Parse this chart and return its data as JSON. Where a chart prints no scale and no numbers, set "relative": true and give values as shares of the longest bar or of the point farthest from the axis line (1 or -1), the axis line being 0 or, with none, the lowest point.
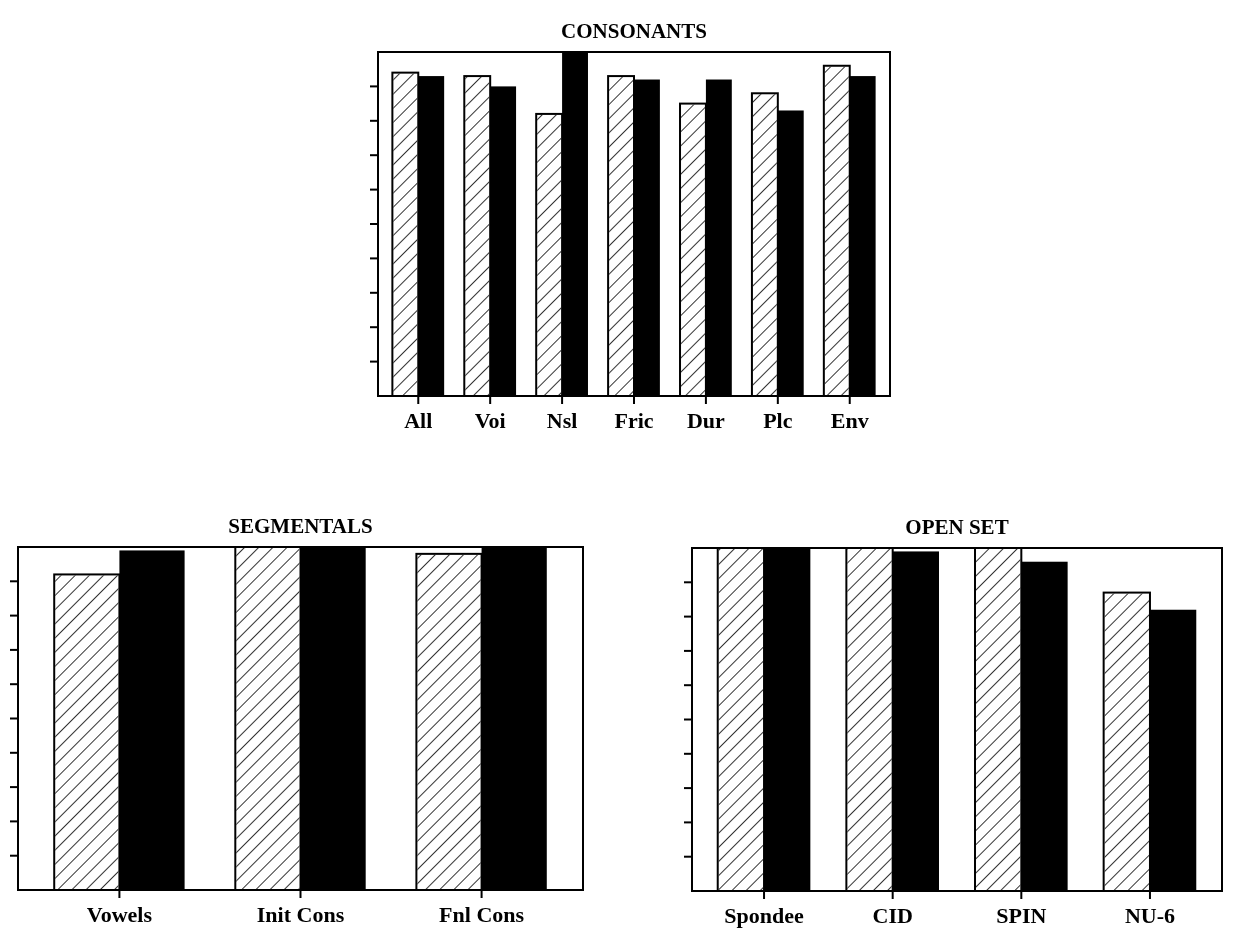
{
  "chart_data": [
    {
      "type": "bar",
      "title": "CONSONANTS",
      "relative": true,
      "categories": [
        "All",
        "Voi",
        "Nsl",
        "Fric",
        "Dur",
        "Plc",
        "Env"
      ],
      "series": [
        {
          "color": "#ffffff",
          "values": [
            0.94,
            0.93,
            0.82,
            0.93,
            0.85,
            0.88,
            0.96
          ]
        },
        {
          "color": "#000000",
          "values": [
            0.93,
            0.9,
            1,
            0.92,
            0.92,
            0.83,
            0.93
          ]
        }
      ]
    },
    {
      "type": "bar",
      "title": "SEGMENTALS",
      "relative": true,
      "categories": [
        "Vowels",
        "Init Cons",
        "Fnl Cons"
      ],
      "series": [
        {
          "color": "#ffffff",
          "values": [
            0.92,
            1,
            0.98
          ]
        },
        {
          "color": "#000000",
          "values": [
            0.99,
            1,
            1
          ]
        }
      ]
    },
    {
      "type": "bar",
      "title": "OPEN SET",
      "relative": true,
      "categories": [
        "Spondee",
        "CID",
        "SPIN",
        "NU-6"
      ],
      "series": [
        {
          "color": "#ffffff",
          "values": [
            1,
            1,
            1,
            0.87
          ]
        },
        {
          "color": "#000000",
          "values": [
            1,
            0.99,
            0.96,
            0.82
          ]
        }
      ]
    }
  ]
}
